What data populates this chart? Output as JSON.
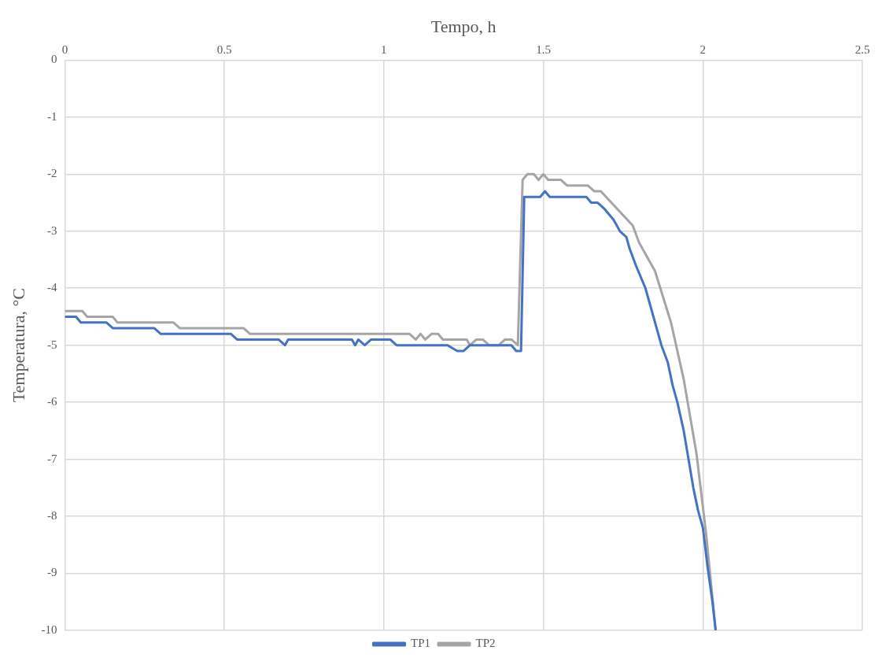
{
  "chart_data": {
    "type": "line",
    "xlabel": "Tempo, h",
    "ylabel": "Temperatura, °C",
    "xlim": [
      0,
      2.5
    ],
    "xticks": [
      0,
      0.5,
      1,
      1.5,
      2,
      2.5
    ],
    "ylim": [
      -10,
      0
    ],
    "yticks": [
      0,
      -1,
      -2,
      -3,
      -4,
      -5,
      -6,
      -7,
      -8,
      -9,
      -10
    ],
    "grid": true,
    "legend": "bottom",
    "marker": "none",
    "line_style": "solid",
    "series": [
      {
        "name": "TP1",
        "color": "#4472c4",
        "x": [
          0,
          0.035,
          0.05,
          0.13,
          0.15,
          0.28,
          0.3,
          0.52,
          0.54,
          0.67,
          0.69,
          0.7,
          0.9,
          0.91,
          0.92,
          0.94,
          0.96,
          1.02,
          1.04,
          1.2,
          1.23,
          1.25,
          1.27,
          1.4,
          1.415,
          1.43,
          1.44,
          1.48,
          1.49,
          1.505,
          1.52,
          1.635,
          1.65,
          1.67,
          1.69,
          1.72,
          1.74,
          1.76,
          1.77,
          1.79,
          1.82,
          1.84,
          1.86,
          1.87,
          1.89,
          1.905,
          1.92,
          1.94,
          1.955,
          1.97,
          1.985,
          2.0,
          2.015,
          2.03,
          2.04
        ],
        "values": [
          -4.5,
          -4.5,
          -4.6,
          -4.6,
          -4.7,
          -4.7,
          -4.8,
          -4.8,
          -4.9,
          -4.9,
          -5.0,
          -4.9,
          -4.9,
          -5.0,
          -4.9,
          -5.0,
          -4.9,
          -4.9,
          -5.0,
          -5.0,
          -5.1,
          -5.1,
          -5.0,
          -5.0,
          -5.1,
          -5.1,
          -2.4,
          -2.4,
          -2.4,
          -2.3,
          -2.4,
          -2.4,
          -2.5,
          -2.5,
          -2.6,
          -2.8,
          -3.0,
          -3.1,
          -3.3,
          -3.6,
          -4.0,
          -4.4,
          -4.8,
          -5.0,
          -5.3,
          -5.7,
          -6.0,
          -6.5,
          -7.0,
          -7.5,
          -7.9,
          -8.2,
          -8.9,
          -9.5,
          -10
        ]
      },
      {
        "name": "TP2",
        "color": "#a5a5a5",
        "x": [
          0,
          0.055,
          0.07,
          0.15,
          0.165,
          0.34,
          0.36,
          0.56,
          0.58,
          1.08,
          1.1,
          1.115,
          1.13,
          1.15,
          1.17,
          1.185,
          1.26,
          1.27,
          1.29,
          1.31,
          1.33,
          1.36,
          1.38,
          1.4,
          1.42,
          1.435,
          1.45,
          1.47,
          1.485,
          1.5,
          1.515,
          1.555,
          1.575,
          1.64,
          1.66,
          1.68,
          1.78,
          1.8,
          1.85,
          1.9,
          1.94,
          1.98,
          2.01,
          2.04
        ],
        "values": [
          -4.4,
          -4.4,
          -4.5,
          -4.5,
          -4.6,
          -4.6,
          -4.7,
          -4.7,
          -4.8,
          -4.8,
          -4.9,
          -4.8,
          -4.9,
          -4.8,
          -4.8,
          -4.9,
          -4.9,
          -5.0,
          -4.9,
          -4.9,
          -5.0,
          -5.0,
          -4.9,
          -4.9,
          -5.0,
          -2.1,
          -2.0,
          -2.0,
          -2.1,
          -2.0,
          -2.1,
          -2.1,
          -2.2,
          -2.2,
          -2.3,
          -2.3,
          -2.9,
          -3.2,
          -3.7,
          -4.6,
          -5.6,
          -6.9,
          -8.3,
          -10
        ]
      }
    ]
  }
}
